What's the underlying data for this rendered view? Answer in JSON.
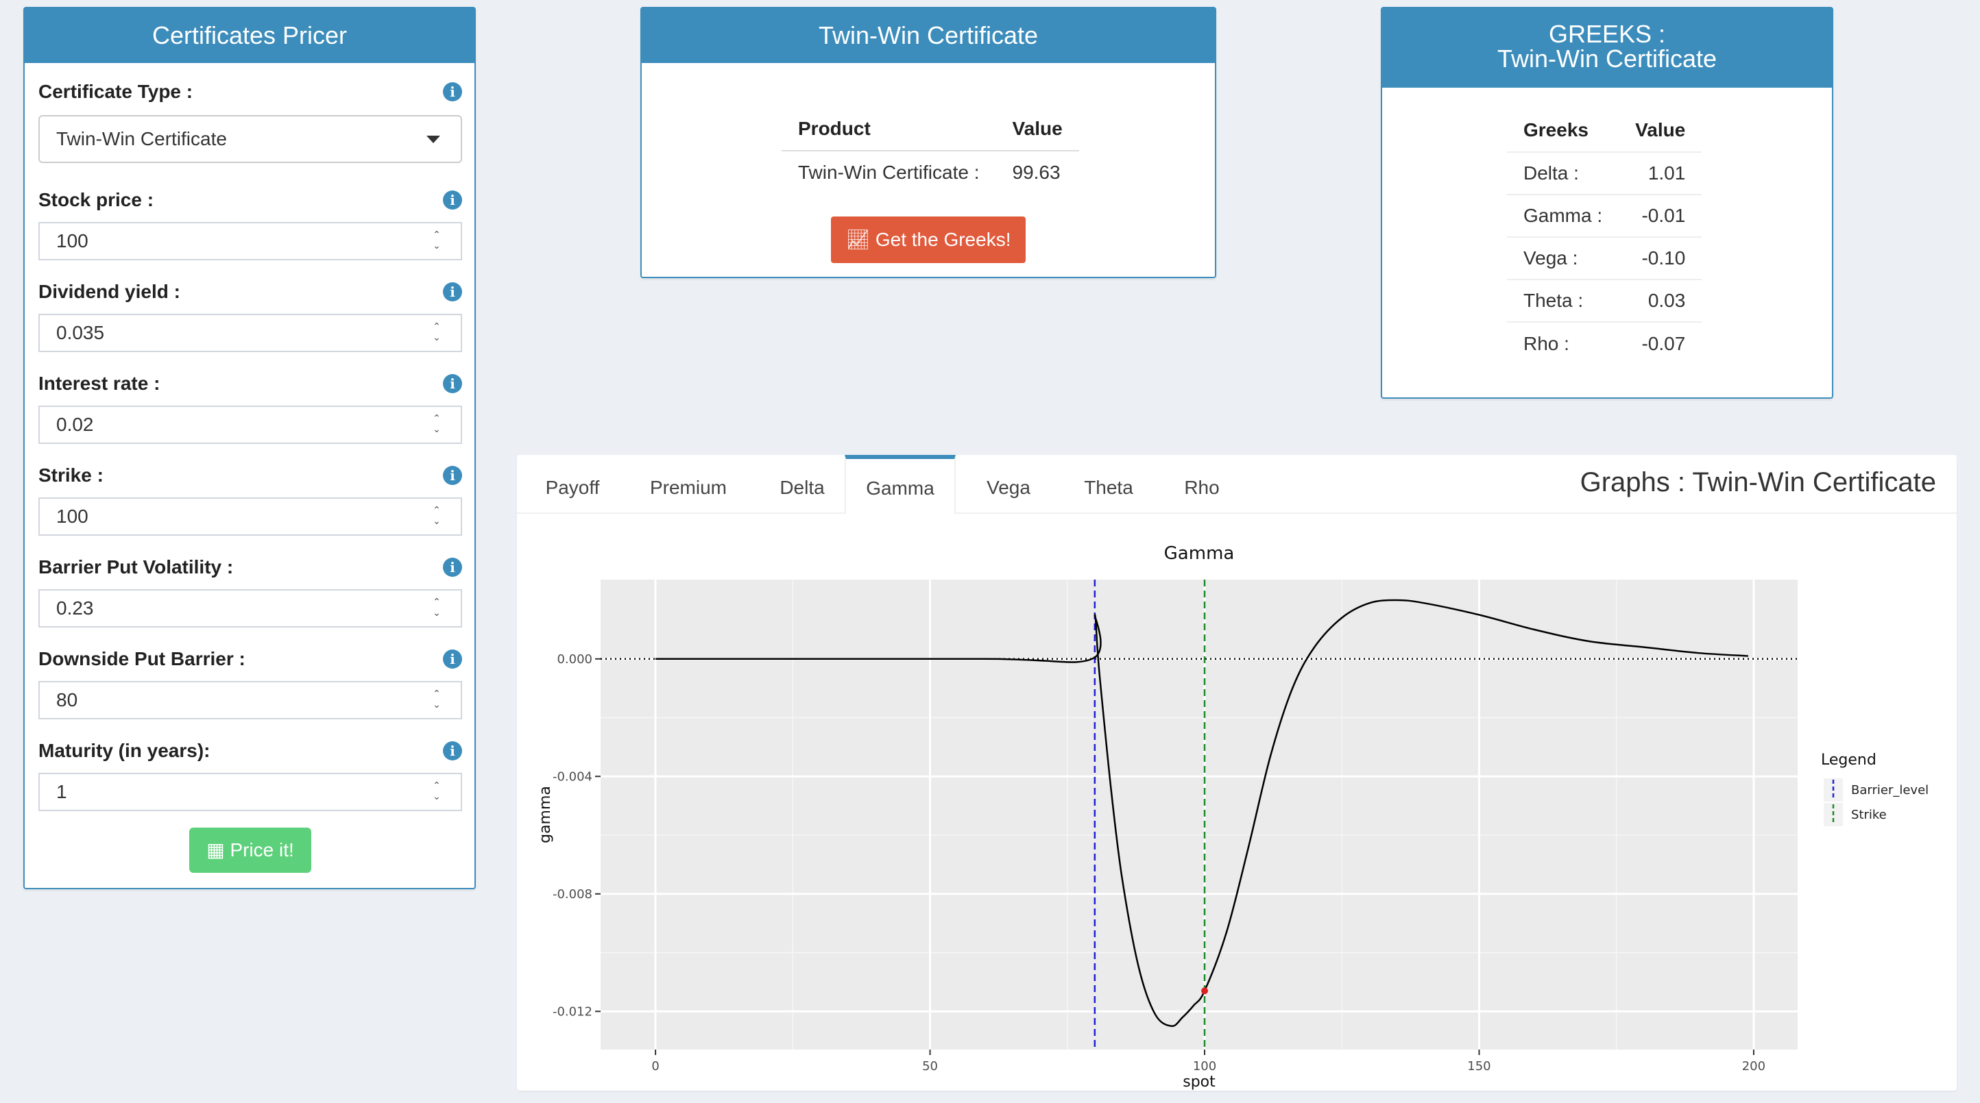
{
  "pricer": {
    "title": "Certificates Pricer",
    "fields": [
      {
        "label": "Certificate Type :",
        "type": "select",
        "value": "Twin-Win Certificate"
      },
      {
        "label": "Stock price :",
        "type": "number",
        "value": "100"
      },
      {
        "label": "Dividend yield :",
        "type": "number",
        "value": "0.035"
      },
      {
        "label": "Interest rate :",
        "type": "number",
        "value": "0.02"
      },
      {
        "label": "Strike :",
        "type": "number",
        "value": "100"
      },
      {
        "label": "Barrier Put Volatility :",
        "type": "number",
        "value": "0.23"
      },
      {
        "label": "Downside Put Barrier :",
        "type": "number",
        "value": "80"
      },
      {
        "label": "Maturity (in years):",
        "type": "number",
        "value": "1"
      }
    ],
    "price_button": "Price it!"
  },
  "product": {
    "title": "Twin-Win Certificate",
    "headers": [
      "Product",
      "Value"
    ],
    "row": {
      "name": "Twin-Win Certificate :",
      "value": "99.63"
    },
    "greeks_button": "Get the Greeks!"
  },
  "greeks": {
    "title_line1": "GREEKS :",
    "title_line2": "Twin-Win Certificate",
    "headers": [
      "Greeks",
      "Value"
    ],
    "rows": [
      {
        "name": "Delta :",
        "value": "1.01"
      },
      {
        "name": "Gamma :",
        "value": "-0.01"
      },
      {
        "name": "Vega :",
        "value": "-0.10"
      },
      {
        "name": "Theta :",
        "value": "0.03"
      },
      {
        "name": "Rho :",
        "value": "-0.07"
      }
    ]
  },
  "graphs": {
    "tabs": [
      "Payoff",
      "Premium",
      "Delta",
      "Gamma",
      "Vega",
      "Theta",
      "Rho"
    ],
    "active_tab": "Gamma",
    "title": "Graphs : Twin-Win Certificate"
  },
  "chart_data": {
    "type": "line",
    "title": "Gamma",
    "xlabel": "spot",
    "ylabel": "gamma",
    "xlim": [
      -10,
      208
    ],
    "ylim": [
      -0.0133,
      0.0027
    ],
    "x_ticks": [
      0,
      50,
      100,
      150,
      200
    ],
    "y_ticks": [
      0.0,
      -0.004,
      -0.008,
      -0.012
    ],
    "y_tick_labels": [
      "0.000",
      "-0.004",
      "-0.008",
      "-0.012"
    ],
    "grid": true,
    "series": [
      {
        "x": [
          0,
          60,
          79.5,
          80,
          80.5,
          81,
          83,
          85,
          88,
          91,
          94,
          96,
          98,
          100,
          104,
          108,
          112,
          116,
          120,
          125,
          130,
          135,
          140,
          150,
          160,
          170,
          180,
          190,
          199
        ],
        "y": [
          0,
          0,
          0,
          0.0015,
          0.0003,
          -0.0008,
          -0.0045,
          -0.0075,
          -0.0105,
          -0.0121,
          -0.0125,
          -0.0122,
          -0.0118,
          -0.0113,
          -0.0093,
          -0.0064,
          -0.0033,
          -0.001,
          0.0004,
          0.0014,
          0.0019,
          0.002,
          0.0019,
          0.0015,
          0.001,
          0.0006,
          0.0004,
          0.0002,
          0.0001
        ]
      }
    ],
    "hlines": [
      {
        "y": 0,
        "style": "dotted",
        "color": "#000000"
      }
    ],
    "vlines": [
      {
        "x": 80,
        "name": "Barrier_level",
        "color": "#1f1fd6",
        "style": "dashed"
      },
      {
        "x": 100,
        "name": "Strike",
        "color": "#1a8a2a",
        "style": "dashed"
      }
    ],
    "marker": {
      "x": 100,
      "y": -0.0113,
      "color": "#e02020"
    },
    "legend": {
      "title": "Legend",
      "position": "right",
      "entries": [
        "Barrier_level",
        "Strike"
      ]
    }
  }
}
